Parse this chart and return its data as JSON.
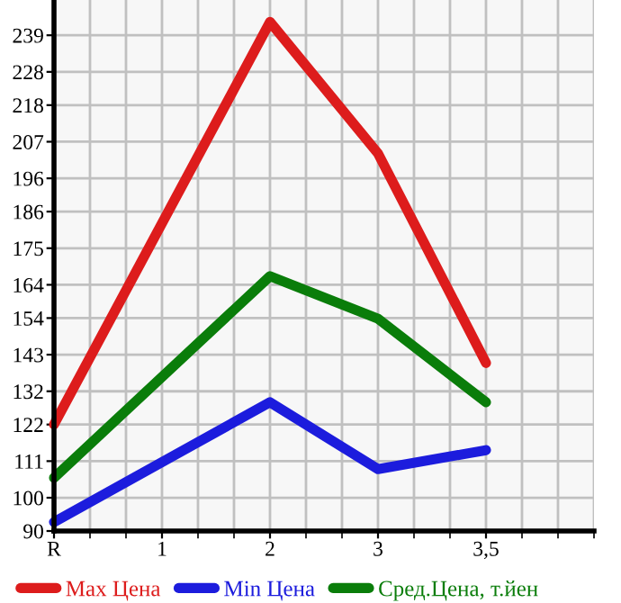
{
  "chart_data": {
    "type": "line",
    "categories": [
      "R",
      "1",
      "2",
      "3",
      "3,5"
    ],
    "series": [
      {
        "name": "Max Цена",
        "color": "#dd1c1c",
        "values": [
          122,
          null,
          243,
          203.5,
          140.5
        ]
      },
      {
        "name": "Min Цена",
        "color": "#1c1cdd",
        "values": [
          92.7,
          null,
          128.7,
          108.6,
          114.3
        ]
      },
      {
        "name": "Сред.Цена, т.йен",
        "color": "#0a7d0a",
        "values": [
          106,
          null,
          166.6,
          153.8,
          128.7
        ]
      }
    ],
    "ylim": [
      90,
      249.6
    ],
    "yticks": [
      90,
      100,
      111,
      122,
      132,
      143,
      154,
      164,
      175,
      186,
      196,
      207,
      218,
      228,
      239
    ],
    "grid": true,
    "legend": "bottom",
    "marker": "none",
    "line_style": "solid"
  }
}
